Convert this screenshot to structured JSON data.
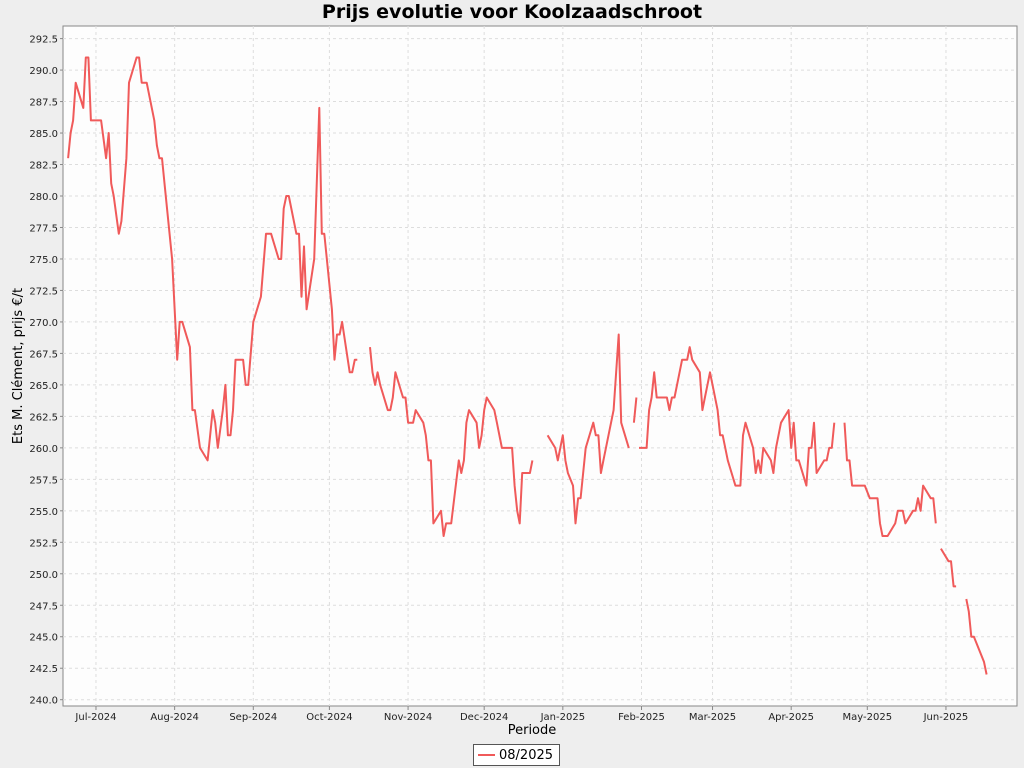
{
  "chart_data": {
    "type": "line",
    "title": "Prijs evolutie voor Koolzaadschroot",
    "xlabel": "Periode",
    "ylabel": "Ets M. Clément, prijs €/t",
    "xlim": [
      "2024-06-18",
      "2025-06-29"
    ],
    "ylim": [
      239.5,
      293.5
    ],
    "y_ticks": [
      240.0,
      242.5,
      245.0,
      247.5,
      250.0,
      252.5,
      255.0,
      257.5,
      260.0,
      262.5,
      265.0,
      267.5,
      270.0,
      272.5,
      275.0,
      277.5,
      280.0,
      282.5,
      285.0,
      287.5,
      290.0,
      292.5
    ],
    "x_ticks": [
      {
        "date": "2024-07-01",
        "label": "Jul-2024"
      },
      {
        "date": "2024-08-01",
        "label": "Aug-2024"
      },
      {
        "date": "2024-09-01",
        "label": "Sep-2024"
      },
      {
        "date": "2024-10-01",
        "label": "Oct-2024"
      },
      {
        "date": "2024-11-01",
        "label": "Nov-2024"
      },
      {
        "date": "2024-12-01",
        "label": "Dec-2024"
      },
      {
        "date": "2025-01-01",
        "label": "Jan-2025"
      },
      {
        "date": "2025-02-01",
        "label": "Feb-2025"
      },
      {
        "date": "2025-03-01",
        "label": "Mar-2025"
      },
      {
        "date": "2025-04-01",
        "label": "Apr-2025"
      },
      {
        "date": "2025-05-01",
        "label": "May-2025"
      },
      {
        "date": "2025-06-01",
        "label": "Jun-2025"
      }
    ],
    "grid": true,
    "legend_position": "bottom-center",
    "series": [
      {
        "name": "08/2025",
        "color": "#f05a5a",
        "segments": [
          [
            [
              "2024-06-20",
              283
            ],
            [
              "2024-06-21",
              285
            ],
            [
              "2024-06-22",
              286
            ],
            [
              "2024-06-23",
              289
            ],
            [
              "2024-06-26",
              287
            ],
            [
              "2024-06-27",
              291
            ],
            [
              "2024-06-28",
              291
            ],
            [
              "2024-06-29",
              286
            ],
            [
              "2024-07-02",
              286
            ],
            [
              "2024-07-03",
              286
            ],
            [
              "2024-07-05",
              283
            ],
            [
              "2024-07-06",
              285
            ],
            [
              "2024-07-07",
              281
            ],
            [
              "2024-07-08",
              280
            ],
            [
              "2024-07-10",
              277
            ],
            [
              "2024-07-11",
              278
            ],
            [
              "2024-07-13",
              283
            ],
            [
              "2024-07-14",
              289
            ],
            [
              "2024-07-17",
              291
            ],
            [
              "2024-07-18",
              291
            ],
            [
              "2024-07-19",
              289
            ],
            [
              "2024-07-21",
              289
            ],
            [
              "2024-07-24",
              286
            ],
            [
              "2024-07-25",
              284
            ],
            [
              "2024-07-26",
              283
            ],
            [
              "2024-07-27",
              283
            ],
            [
              "2024-07-28",
              281
            ],
            [
              "2024-07-31",
              275
            ],
            [
              "2024-08-02",
              267
            ],
            [
              "2024-08-03",
              270
            ],
            [
              "2024-08-04",
              270
            ],
            [
              "2024-08-07",
              268
            ],
            [
              "2024-08-08",
              263
            ],
            [
              "2024-08-09",
              263
            ],
            [
              "2024-08-11",
              260
            ],
            [
              "2024-08-14",
              259
            ],
            [
              "2024-08-16",
              263
            ],
            [
              "2024-08-17",
              262
            ],
            [
              "2024-08-18",
              260
            ],
            [
              "2024-08-20",
              263
            ],
            [
              "2024-08-21",
              265
            ],
            [
              "2024-08-22",
              261
            ],
            [
              "2024-08-23",
              261
            ],
            [
              "2024-08-24",
              263
            ],
            [
              "2024-08-25",
              267
            ],
            [
              "2024-08-28",
              267
            ],
            [
              "2024-08-29",
              265
            ],
            [
              "2024-08-30",
              265
            ],
            [
              "2024-09-01",
              270
            ],
            [
              "2024-09-04",
              272
            ],
            [
              "2024-09-06",
              277
            ],
            [
              "2024-09-08",
              277
            ],
            [
              "2024-09-11",
              275
            ],
            [
              "2024-09-12",
              275
            ],
            [
              "2024-09-13",
              279
            ],
            [
              "2024-09-14",
              280
            ],
            [
              "2024-09-15",
              280
            ],
            [
              "2024-09-18",
              277
            ],
            [
              "2024-09-19",
              277
            ],
            [
              "2024-09-20",
              272
            ],
            [
              "2024-09-21",
              276
            ],
            [
              "2024-09-22",
              271
            ],
            [
              "2024-09-25",
              275
            ],
            [
              "2024-09-27",
              287
            ],
            [
              "2024-09-28",
              277
            ],
            [
              "2024-09-29",
              277
            ],
            [
              "2024-10-02",
              271
            ],
            [
              "2024-10-03",
              267
            ],
            [
              "2024-10-04",
              269
            ],
            [
              "2024-10-05",
              269
            ],
            [
              "2024-10-06",
              270
            ],
            [
              "2024-10-09",
              266
            ],
            [
              "2024-10-10",
              266
            ],
            [
              "2024-10-11",
              267
            ],
            [
              "2024-10-12",
              267
            ]
          ],
          [
            [
              "2024-10-17",
              268
            ],
            [
              "2024-10-18",
              266
            ],
            [
              "2024-10-19",
              265
            ],
            [
              "2024-10-20",
              266
            ],
            [
              "2024-10-21",
              265
            ],
            [
              "2024-10-24",
              263
            ],
            [
              "2024-10-25",
              263
            ],
            [
              "2024-10-26",
              264
            ],
            [
              "2024-10-27",
              266
            ],
            [
              "2024-10-30",
              264
            ],
            [
              "2024-10-31",
              264
            ],
            [
              "2024-11-01",
              262
            ],
            [
              "2024-11-03",
              262
            ],
            [
              "2024-11-04",
              263
            ],
            [
              "2024-11-07",
              262
            ],
            [
              "2024-11-08",
              261
            ],
            [
              "2024-11-09",
              259
            ],
            [
              "2024-11-10",
              259
            ],
            [
              "2024-11-11",
              254
            ],
            [
              "2024-11-14",
              255
            ],
            [
              "2024-11-15",
              253
            ],
            [
              "2024-11-16",
              254
            ],
            [
              "2024-11-18",
              254
            ],
            [
              "2024-11-21",
              259
            ],
            [
              "2024-11-22",
              258
            ],
            [
              "2024-11-23",
              259
            ],
            [
              "2024-11-24",
              262
            ],
            [
              "2024-11-25",
              263
            ],
            [
              "2024-11-28",
              262
            ],
            [
              "2024-11-29",
              260
            ],
            [
              "2024-11-30",
              261
            ],
            [
              "2024-12-01",
              263
            ],
            [
              "2024-12-02",
              264
            ],
            [
              "2024-12-05",
              263
            ],
            [
              "2024-12-06",
              262
            ],
            [
              "2024-12-07",
              261
            ],
            [
              "2024-12-08",
              260
            ],
            [
              "2024-12-12",
              260
            ],
            [
              "2024-12-13",
              257
            ],
            [
              "2024-12-14",
              255
            ],
            [
              "2024-12-15",
              254
            ],
            [
              "2024-12-16",
              258
            ],
            [
              "2024-12-19",
              258
            ],
            [
              "2024-12-20",
              259
            ]
          ],
          [
            [
              "2024-12-26",
              261
            ],
            [
              "2024-12-29",
              260
            ],
            [
              "2024-12-30",
              259
            ],
            [
              "2025-01-01",
              261
            ],
            [
              "2025-01-02",
              259
            ],
            [
              "2025-01-03",
              258
            ],
            [
              "2025-01-05",
              257
            ],
            [
              "2025-01-06",
              254
            ],
            [
              "2025-01-07",
              256
            ],
            [
              "2025-01-08",
              256
            ],
            [
              "2025-01-10",
              260
            ],
            [
              "2025-01-13",
              262
            ],
            [
              "2025-01-14",
              261
            ],
            [
              "2025-01-15",
              261
            ],
            [
              "2025-01-16",
              258
            ],
            [
              "2025-01-17",
              259
            ],
            [
              "2025-01-21",
              263
            ],
            [
              "2025-01-23",
              269
            ],
            [
              "2025-01-24",
              262
            ],
            [
              "2025-01-27",
              260
            ]
          ],
          [
            [
              "2025-01-29",
              262
            ],
            [
              "2025-01-30",
              264
            ]
          ],
          [
            [
              "2025-01-31",
              260
            ],
            [
              "2025-02-01",
              260
            ],
            [
              "2025-02-03",
              260
            ],
            [
              "2025-02-04",
              263
            ],
            [
              "2025-02-05",
              264
            ],
            [
              "2025-02-06",
              266
            ],
            [
              "2025-02-07",
              264
            ],
            [
              "2025-02-10",
              264
            ],
            [
              "2025-02-11",
              264
            ],
            [
              "2025-02-12",
              263
            ],
            [
              "2025-02-13",
              264
            ],
            [
              "2025-02-14",
              264
            ],
            [
              "2025-02-17",
              267
            ],
            [
              "2025-02-18",
              267
            ],
            [
              "2025-02-19",
              267
            ],
            [
              "2025-02-20",
              268
            ],
            [
              "2025-02-21",
              267
            ],
            [
              "2025-02-24",
              266
            ],
            [
              "2025-02-25",
              263
            ],
            [
              "2025-02-26",
              264
            ],
            [
              "2025-02-28",
              266
            ],
            [
              "2025-03-03",
              263
            ],
            [
              "2025-03-04",
              261
            ],
            [
              "2025-03-05",
              261
            ],
            [
              "2025-03-07",
              259
            ],
            [
              "2025-03-10",
              257
            ],
            [
              "2025-03-11",
              257
            ],
            [
              "2025-03-12",
              257
            ],
            [
              "2025-03-13",
              261
            ],
            [
              "2025-03-14",
              262
            ],
            [
              "2025-03-17",
              260
            ],
            [
              "2025-03-18",
              258
            ],
            [
              "2025-03-19",
              259
            ],
            [
              "2025-03-20",
              258
            ],
            [
              "2025-03-21",
              260
            ],
            [
              "2025-03-24",
              259
            ],
            [
              "2025-03-25",
              258
            ],
            [
              "2025-03-26",
              260
            ],
            [
              "2025-03-28",
              262
            ],
            [
              "2025-03-31",
              263
            ],
            [
              "2025-04-01",
              260
            ],
            [
              "2025-04-02",
              262
            ],
            [
              "2025-04-03",
              259
            ],
            [
              "2025-04-04",
              259
            ],
            [
              "2025-04-07",
              257
            ],
            [
              "2025-04-08",
              260
            ],
            [
              "2025-04-09",
              260
            ],
            [
              "2025-04-10",
              262
            ],
            [
              "2025-04-11",
              258
            ],
            [
              "2025-04-14",
              259
            ],
            [
              "2025-04-15",
              259
            ],
            [
              "2025-04-16",
              260
            ],
            [
              "2025-04-17",
              260
            ],
            [
              "2025-04-18",
              262
            ]
          ],
          [
            [
              "2025-04-22",
              262
            ],
            [
              "2025-04-23",
              259
            ],
            [
              "2025-04-24",
              259
            ],
            [
              "2025-04-25",
              257
            ],
            [
              "2025-04-28",
              257
            ],
            [
              "2025-04-30",
              257
            ],
            [
              "2025-05-02",
              256
            ],
            [
              "2025-05-05",
              256
            ],
            [
              "2025-05-06",
              254
            ],
            [
              "2025-05-07",
              253
            ],
            [
              "2025-05-09",
              253
            ],
            [
              "2025-05-12",
              254
            ],
            [
              "2025-05-13",
              255
            ],
            [
              "2025-05-15",
              255
            ],
            [
              "2025-05-16",
              254
            ],
            [
              "2025-05-19",
              255
            ],
            [
              "2025-05-20",
              255
            ],
            [
              "2025-05-21",
              256
            ],
            [
              "2025-05-22",
              255
            ],
            [
              "2025-05-23",
              257
            ],
            [
              "2025-05-26",
              256
            ],
            [
              "2025-05-27",
              256
            ],
            [
              "2025-05-28",
              254
            ]
          ],
          [
            [
              "2025-05-30",
              252
            ],
            [
              "2025-06-02",
              251
            ],
            [
              "2025-06-03",
              251
            ],
            [
              "2025-06-04",
              249
            ],
            [
              "2025-06-05",
              249
            ]
          ],
          [
            [
              "2025-06-09",
              248
            ],
            [
              "2025-06-10",
              247
            ],
            [
              "2025-06-11",
              245
            ],
            [
              "2025-06-12",
              245
            ],
            [
              "2025-06-16",
              243
            ],
            [
              "2025-06-17",
              242
            ]
          ]
        ]
      }
    ]
  }
}
